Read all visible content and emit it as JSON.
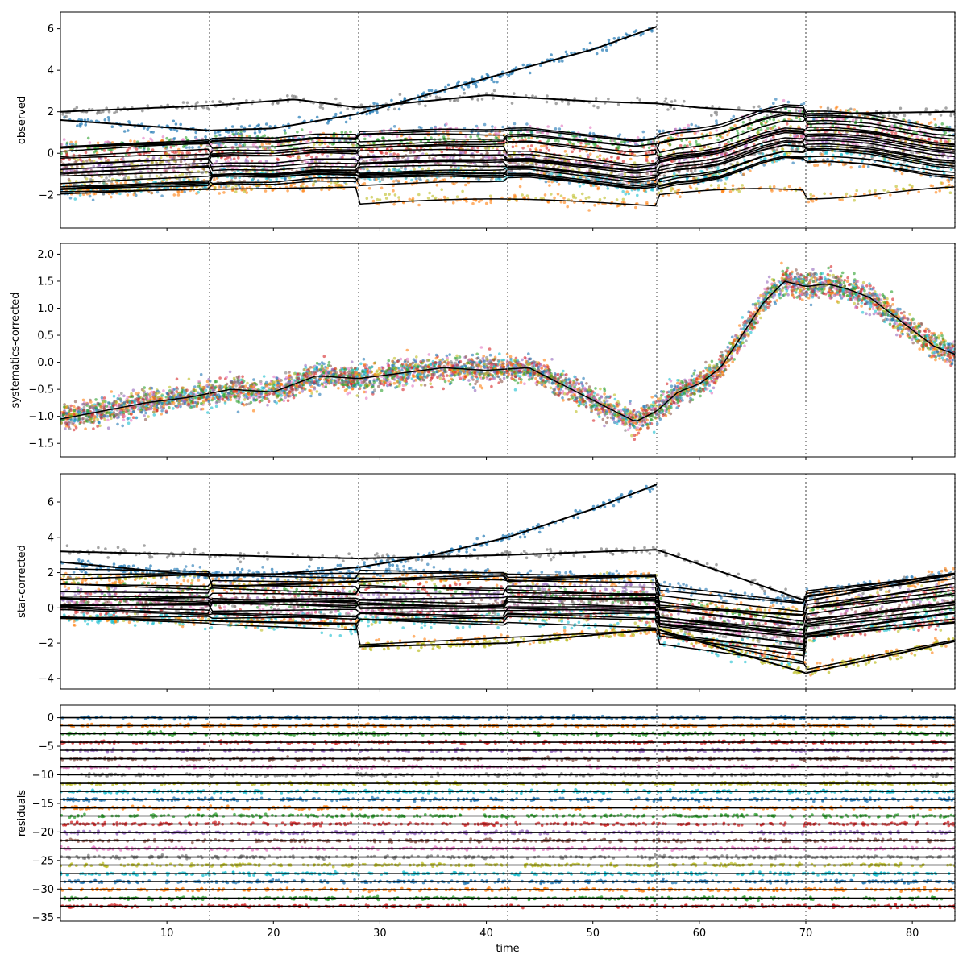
{
  "chart_data": [
    {
      "type": "scatter",
      "panel": "observed",
      "ylabel": "observed",
      "xlabel": "",
      "xlim": [
        0,
        84
      ],
      "ylim": [
        -3.6,
        6.8
      ],
      "yticks": [
        -2,
        0,
        2,
        4,
        6
      ],
      "xticks": [
        10,
        20,
        30,
        40,
        50,
        60,
        70,
        80
      ],
      "show_x_tick_labels": false,
      "vlines": [
        14,
        28,
        42,
        56,
        70,
        84
      ],
      "note_series": "many light-curve series (scatter points) each overlaid with a black model line",
      "highlight_series": [
        {
          "name_color": "blue",
          "x": [
            0,
            14,
            20,
            28,
            35,
            42,
            50,
            56
          ],
          "y": [
            1.6,
            1.1,
            1.2,
            1.9,
            2.9,
            3.9,
            5.0,
            6.1
          ]
        },
        {
          "name_color": "gray",
          "x": [
            0,
            14,
            22,
            28,
            40,
            50,
            56,
            60,
            70,
            84
          ],
          "y": [
            2.0,
            2.3,
            2.6,
            2.2,
            2.8,
            2.5,
            2.4,
            2.2,
            1.9,
            2.0
          ]
        }
      ]
    },
    {
      "type": "scatter",
      "panel": "systematics-corrected",
      "ylabel": "systematics-corrected",
      "xlabel": "",
      "xlim": [
        0,
        84
      ],
      "ylim": [
        -1.75,
        2.2
      ],
      "yticks": [
        -1.5,
        -1.0,
        -0.5,
        0.0,
        0.5,
        1.0,
        1.5,
        2.0
      ],
      "xticks": [
        10,
        20,
        30,
        40,
        50,
        60,
        70,
        80
      ],
      "show_x_tick_labels": false,
      "vlines": [
        14,
        28,
        42,
        56,
        70,
        84
      ],
      "model_curve": {
        "x": [
          0,
          4,
          8,
          12,
          16,
          20,
          24,
          28,
          32,
          36,
          40,
          44,
          48,
          50,
          52,
          54,
          56,
          58,
          60,
          62,
          64,
          66,
          68,
          70,
          72,
          74,
          76,
          78,
          80,
          82,
          84
        ],
        "y": [
          -1.05,
          -0.9,
          -0.75,
          -0.65,
          -0.5,
          -0.55,
          -0.25,
          -0.3,
          -0.2,
          -0.1,
          -0.15,
          -0.1,
          -0.5,
          -0.7,
          -0.9,
          -1.1,
          -0.9,
          -0.55,
          -0.4,
          -0.1,
          0.5,
          1.1,
          1.5,
          1.4,
          1.45,
          1.35,
          1.2,
          0.9,
          0.6,
          0.3,
          0.15
        ]
      }
    },
    {
      "type": "scatter",
      "panel": "star-corrected",
      "ylabel": "star-corrected",
      "xlabel": "",
      "xlim": [
        0,
        84
      ],
      "ylim": [
        -4.6,
        7.6
      ],
      "yticks": [
        -4,
        -2,
        0,
        2,
        4,
        6
      ],
      "xticks": [
        10,
        20,
        30,
        40,
        50,
        60,
        70,
        80
      ],
      "show_x_tick_labels": false,
      "vlines": [
        14,
        28,
        42,
        56,
        70,
        84
      ],
      "highlight_series": [
        {
          "name_color": "blue",
          "x": [
            0,
            14,
            20,
            28,
            35,
            42,
            50,
            56
          ],
          "y": [
            2.6,
            1.8,
            1.9,
            2.3,
            3.0,
            4.0,
            5.6,
            7.0
          ]
        },
        {
          "name_color": "gray",
          "x": [
            0,
            14,
            28,
            42,
            56,
            70,
            84
          ],
          "y": [
            3.2,
            3.0,
            2.8,
            3.0,
            3.3,
            0.4,
            1.9
          ]
        },
        {
          "name_color": "olive",
          "x": [
            28,
            42,
            56,
            70,
            84
          ],
          "y": [
            -2.2,
            -2.0,
            -1.2,
            -3.7,
            -1.9
          ]
        }
      ]
    },
    {
      "type": "scatter",
      "panel": "residuals",
      "ylabel": "residuals",
      "xlabel": "time",
      "xlim": [
        0,
        84
      ],
      "ylim": [
        -35.6,
        2.2
      ],
      "yticks": [
        -35,
        -30,
        -25,
        -20,
        -15,
        -10,
        -5,
        0
      ],
      "xticks": [
        10,
        20,
        30,
        40,
        50,
        60,
        70,
        80
      ],
      "show_x_tick_labels": true,
      "vlines": [
        14,
        28,
        42,
        56,
        70,
        84
      ],
      "residual_offsets": [
        0,
        -1.4,
        -2.8,
        -4.3,
        -5.7,
        -7.2,
        -8.6,
        -10.0,
        -11.5,
        -12.9,
        -14.3,
        -15.8,
        -17.2,
        -18.6,
        -20.1,
        -21.5,
        -22.9,
        -24.4,
        -25.8,
        -27.3,
        -28.7,
        -30.1,
        -31.6,
        -33.0
      ]
    }
  ],
  "colors": {
    "palette": [
      "#1f77b4",
      "#ff7f0e",
      "#2ca02c",
      "#d62728",
      "#9467bd",
      "#8c564b",
      "#e377c2",
      "#7f7f7f",
      "#bcbd22",
      "#17becf"
    ],
    "model_line": "#000000",
    "vline": "#808080"
  }
}
